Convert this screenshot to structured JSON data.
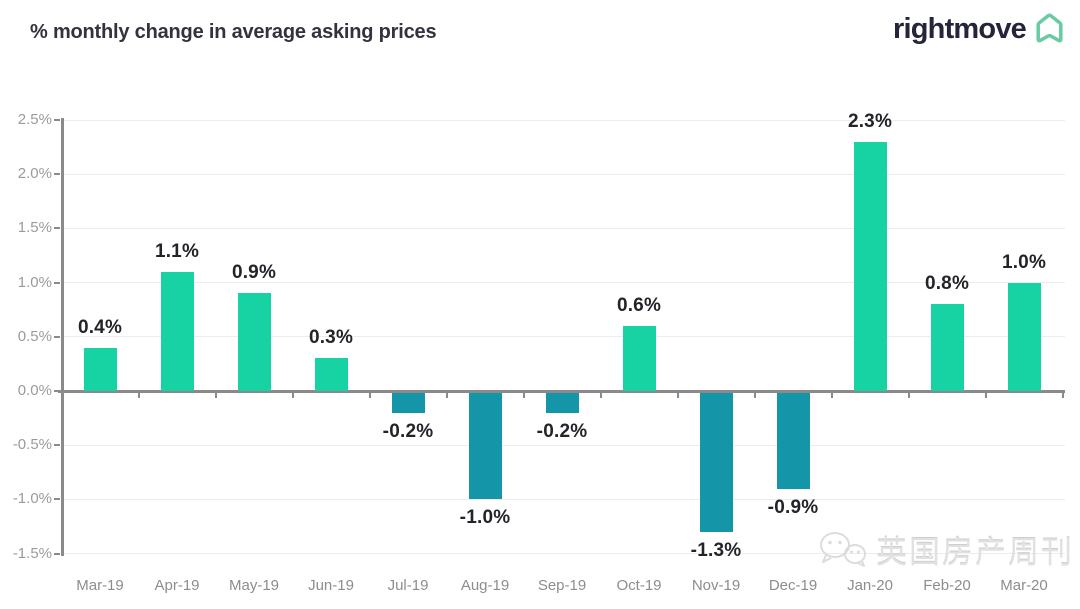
{
  "header": {
    "title": "% monthly change in average asking prices",
    "logo_text": "rightmove",
    "logo_icon": "rightmove-house-icon"
  },
  "watermark": {
    "icon": "wechat-icon",
    "text": "英国房产周刊"
  },
  "colors": {
    "positive_bar": "#17d3a3",
    "negative_bar": "#1596a8",
    "axis": "#8a8a8a",
    "gridline": "#ececec",
    "data_label": "#232329",
    "y_tick_label": "#9b9b9b",
    "x_tick_label": "#8d8d8d",
    "title": "#33333f",
    "logo_text": "#24243a",
    "logo_green": "#68cba2"
  },
  "chart_data": {
    "type": "bar",
    "title": "% monthly change in average asking prices",
    "categories": [
      "Mar-19",
      "Apr-19",
      "May-19",
      "Jun-19",
      "Jul-19",
      "Aug-19",
      "Sep-19",
      "Oct-19",
      "Nov-19",
      "Dec-19",
      "Jan-20",
      "Feb-20",
      "Mar-20"
    ],
    "values": [
      0.4,
      1.1,
      0.9,
      0.3,
      -0.2,
      -1.0,
      -0.2,
      0.6,
      -1.3,
      -0.9,
      2.3,
      0.8,
      1.0
    ],
    "value_labels": [
      "0.4%",
      "1.1%",
      "0.9%",
      "0.3%",
      "-0.2%",
      "-1.0%",
      "-0.2%",
      "0.6%",
      "-1.3%",
      "-0.9%",
      "2.3%",
      "0.8%",
      "1.0%"
    ],
    "xlabel": "",
    "ylabel": "",
    "ylim": [
      -1.5,
      2.5
    ],
    "ytick_step": 0.5,
    "yticks": [
      2.5,
      2.0,
      1.5,
      1.0,
      0.5,
      0.0,
      -0.5,
      -1.0,
      -1.5
    ],
    "ytick_labels": [
      "2.5%",
      "2.0%",
      "1.5%",
      "1.0%",
      "0.5%",
      "0.0%",
      "-0.5%",
      "-1.0%",
      "-1.5%"
    ],
    "grid": true,
    "legend": false,
    "bar_colors": {
      "positive": "#17d3a3",
      "negative": "#1596a8"
    }
  }
}
